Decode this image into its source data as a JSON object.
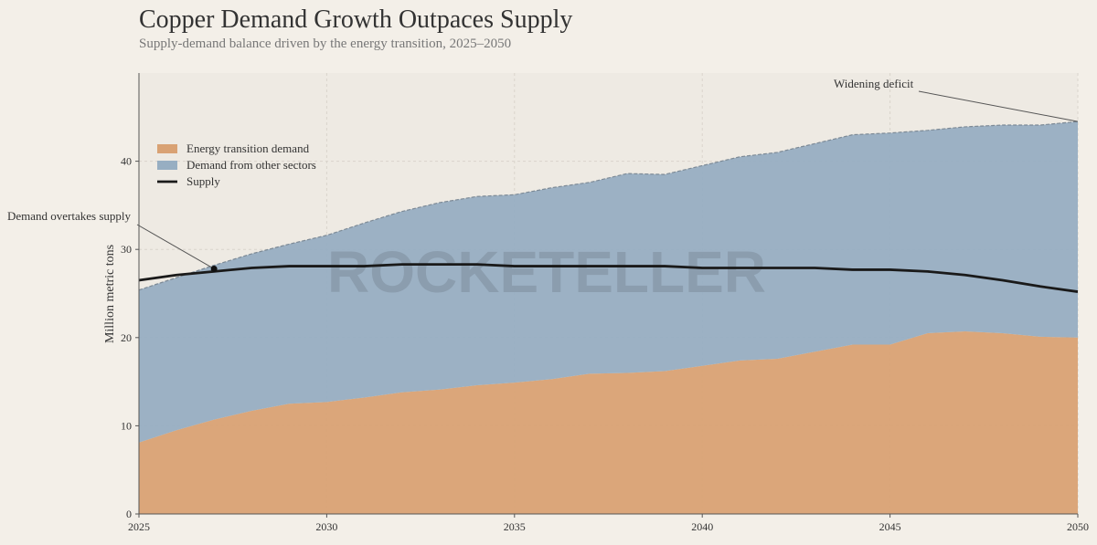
{
  "chart_data": {
    "type": "stacked_area_line",
    "title": "Copper Demand Growth Outpaces Supply",
    "subtitle": "Supply-demand balance driven by the energy transition, 2025–2050",
    "ylabel": "Million metric tons",
    "watermark": "ROCKETELLER",
    "x": [
      2025,
      2026,
      2027,
      2028,
      2029,
      2030,
      2031,
      2032,
      2033,
      2034,
      2035,
      2036,
      2037,
      2038,
      2039,
      2040,
      2041,
      2042,
      2043,
      2044,
      2045,
      2046,
      2047,
      2048,
      2049,
      2050
    ],
    "series": [
      {
        "name": "Energy transition demand",
        "color": "#d9a274",
        "kind": "area",
        "values": [
          8.1,
          9.5,
          10.7,
          11.7,
          12.5,
          12.7,
          13.2,
          13.8,
          14.1,
          14.6,
          14.9,
          15.3,
          15.9,
          16.0,
          16.2,
          16.8,
          17.4,
          17.6,
          18.4,
          19.2,
          19.2,
          20.5,
          20.7,
          20.5,
          20.1,
          20.0
        ]
      },
      {
        "name": "Demand from other sectors",
        "color": "#97aec2",
        "kind": "area",
        "values": [
          17.3,
          17.3,
          17.5,
          17.8,
          18.1,
          18.9,
          19.8,
          20.5,
          21.2,
          21.4,
          21.3,
          21.7,
          21.7,
          22.6,
          22.3,
          22.7,
          23.1,
          23.4,
          23.6,
          23.8,
          24.0,
          23.0,
          23.2,
          23.6,
          24.0,
          24.5
        ]
      },
      {
        "name": "Supply",
        "color": "#1a1a1a",
        "kind": "line",
        "values": [
          26.5,
          27.1,
          27.5,
          27.9,
          28.1,
          28.1,
          28.1,
          28.3,
          28.3,
          28.3,
          28.1,
          28.1,
          28.1,
          28.1,
          28.1,
          27.9,
          27.9,
          27.9,
          27.9,
          27.7,
          27.7,
          27.5,
          27.1,
          26.5,
          25.8,
          25.2
        ]
      }
    ],
    "annotations": [
      {
        "text": "Demand overtakes supply",
        "x": 2027,
        "y": 27.8
      },
      {
        "text": "Widening deficit",
        "x": 2050,
        "y": 44.5
      }
    ],
    "xlim": [
      2025,
      2050
    ],
    "xticks": [
      2025,
      2030,
      2035,
      2040,
      2045,
      2050
    ],
    "ylim": [
      0,
      50
    ],
    "yticks": [
      0,
      10,
      20,
      30,
      40
    ],
    "grid": true,
    "legend": "upper left"
  }
}
